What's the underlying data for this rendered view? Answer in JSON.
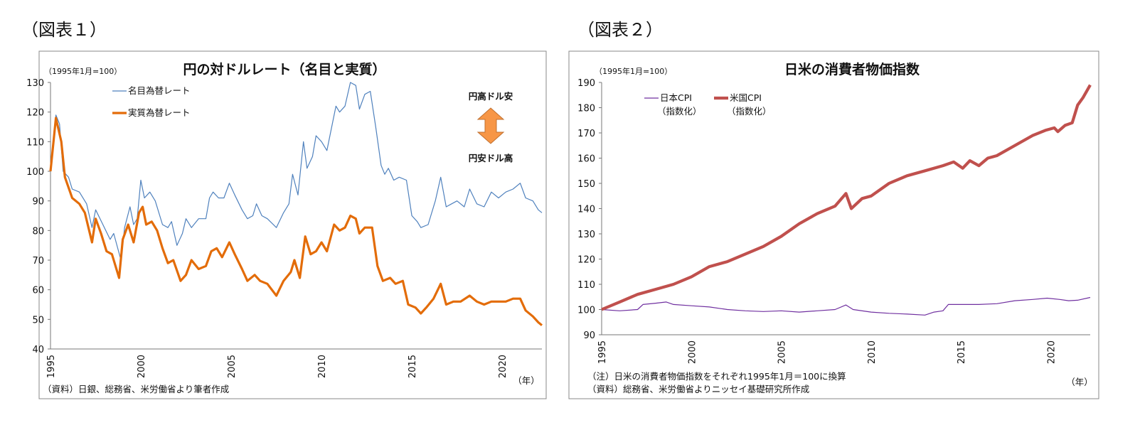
{
  "chart_data": [
    {
      "type": "line",
      "figure_label": "（図表１）",
      "title": "円の対ドルレート（名目と実質）",
      "unit_label": "（1995年1月=100）",
      "xlabel": "（年）",
      "xlim": [
        1995,
        2022.2
      ],
      "ylim": [
        40,
        130
      ],
      "yticks": [
        40,
        50,
        60,
        70,
        80,
        90,
        100,
        110,
        120,
        130
      ],
      "xticks": [
        1995,
        2000,
        2005,
        2010,
        2015,
        2020
      ],
      "grid": false,
      "legend": "top-left",
      "annotation_top": "円高ドル安",
      "annotation_bottom": "円安ドル高",
      "arrow_color": "#F79646",
      "source": "（資料）日銀、総務省、米労働省より筆者作成",
      "series": [
        {
          "name": "名目為替レート",
          "color": "#4F81BD",
          "x": [
            1995.0,
            1995.3,
            1995.5,
            1995.7,
            1996.0,
            1996.2,
            1996.6,
            1997.0,
            1997.3,
            1997.5,
            1997.9,
            1998.3,
            1998.5,
            1998.9,
            1999.1,
            1999.4,
            1999.6,
            1999.8,
            2000.0,
            2000.2,
            2000.5,
            2000.8,
            2001.2,
            2001.5,
            2001.7,
            2002.0,
            2002.3,
            2002.5,
            2002.8,
            2003.2,
            2003.6,
            2003.8,
            2004.0,
            2004.3,
            2004.6,
            2004.9,
            2005.2,
            2005.6,
            2005.9,
            2006.2,
            2006.4,
            2006.7,
            2007.0,
            2007.5,
            2007.9,
            2008.2,
            2008.4,
            2008.7,
            2009.0,
            2009.2,
            2009.5,
            2009.7,
            2010.0,
            2010.3,
            2010.6,
            2010.8,
            2011.0,
            2011.3,
            2011.6,
            2011.9,
            2012.1,
            2012.4,
            2012.7,
            2013.0,
            2013.3,
            2013.5,
            2013.7,
            2014.0,
            2014.3,
            2014.7,
            2015.0,
            2015.3,
            2015.5,
            2015.9,
            2016.3,
            2016.6,
            2016.9,
            2017.2,
            2017.5,
            2017.9,
            2018.2,
            2018.6,
            2019.0,
            2019.4,
            2019.8,
            2020.2,
            2020.6,
            2021.0,
            2021.3,
            2021.7,
            2022.0,
            2022.2
          ],
          "y": [
            100,
            119,
            116,
            100,
            98,
            94,
            93,
            89,
            81,
            87,
            82,
            77,
            79,
            70,
            81,
            88,
            82,
            84,
            97,
            91,
            93,
            90,
            82,
            81,
            83,
            75,
            79,
            84,
            81,
            84,
            84,
            91,
            93,
            91,
            91,
            96,
            92,
            87,
            84,
            85,
            89,
            85,
            84,
            81,
            86,
            89,
            99,
            92,
            110,
            101,
            105,
            112,
            110,
            107,
            116,
            122,
            120,
            122,
            130,
            129,
            121,
            126,
            127,
            115,
            102,
            99,
            101,
            97,
            98,
            97,
            85,
            83,
            81,
            82,
            90,
            98,
            88,
            89,
            90,
            88,
            94,
            89,
            88,
            93,
            91,
            93,
            94,
            96,
            91,
            90,
            87,
            86
          ]
        },
        {
          "name": "実質為替レート",
          "color": "#E36C09",
          "x": [
            1995.0,
            1995.3,
            1995.6,
            1995.8,
            1996.2,
            1996.6,
            1996.9,
            1997.3,
            1997.5,
            1997.8,
            1998.1,
            1998.4,
            1998.8,
            1999.0,
            1999.3,
            1999.6,
            1999.9,
            2000.1,
            2000.3,
            2000.6,
            2000.9,
            2001.2,
            2001.5,
            2001.8,
            2002.2,
            2002.5,
            2002.8,
            2003.2,
            2003.6,
            2003.9,
            2004.2,
            2004.5,
            2004.9,
            2005.2,
            2005.6,
            2005.9,
            2006.3,
            2006.6,
            2007.0,
            2007.5,
            2007.9,
            2008.3,
            2008.5,
            2008.8,
            2009.1,
            2009.4,
            2009.7,
            2010.0,
            2010.3,
            2010.7,
            2011.0,
            2011.3,
            2011.6,
            2011.9,
            2012.1,
            2012.4,
            2012.8,
            2013.1,
            2013.4,
            2013.8,
            2014.1,
            2014.5,
            2014.8,
            2015.2,
            2015.5,
            2015.8,
            2016.2,
            2016.6,
            2016.9,
            2017.3,
            2017.7,
            2018.2,
            2018.6,
            2019.0,
            2019.4,
            2019.8,
            2020.2,
            2020.6,
            2021.0,
            2021.3,
            2021.7,
            2022.0,
            2022.2
          ],
          "y": [
            100,
            118,
            110,
            98,
            91,
            89,
            86,
            76,
            84,
            79,
            73,
            72,
            64,
            77,
            82,
            76,
            86,
            88,
            82,
            83,
            80,
            74,
            69,
            70,
            63,
            65,
            70,
            67,
            68,
            73,
            74,
            71,
            76,
            72,
            67,
            63,
            65,
            63,
            62,
            58,
            63,
            66,
            70,
            64,
            78,
            72,
            73,
            76,
            73,
            82,
            80,
            81,
            85,
            84,
            79,
            81,
            81,
            68,
            63,
            64,
            62,
            63,
            55,
            54,
            52,
            54,
            57,
            62,
            55,
            56,
            56,
            58,
            56,
            55,
            56,
            56,
            56,
            57,
            57,
            53,
            51,
            49,
            48
          ]
        }
      ]
    },
    {
      "type": "line",
      "figure_label": "（図表２）",
      "title": "日米の消費者物価指数",
      "unit_label": "（1995年1月=100）",
      "xlabel": "（年）",
      "xlim": [
        1995,
        2022.2
      ],
      "ylim": [
        90,
        190
      ],
      "yticks": [
        90,
        100,
        110,
        120,
        130,
        140,
        150,
        160,
        170,
        180,
        190
      ],
      "xticks": [
        1995,
        2000,
        2005,
        2010,
        2015,
        2020
      ],
      "grid": false,
      "legend": "top-left",
      "note": "（注）日米の消費者物価指数をそれぞれ1995年1月＝100に換算",
      "source": "（資料）総務省、米労働省よりニッセイ基礎研究所作成",
      "series": [
        {
          "name": "日本CPI",
          "name_line2": "（指数化）",
          "color": "#7030A0",
          "x": [
            1995,
            1996,
            1997.0,
            1997.3,
            1998,
            1998.6,
            1999,
            2000,
            2001,
            2002,
            2003,
            2004,
            2005,
            2006,
            2007,
            2008,
            2008.6,
            2009,
            2010,
            2011,
            2012,
            2013,
            2013.5,
            2014.0,
            2014.3,
            2015,
            2016,
            2017,
            2018,
            2019,
            2019.8,
            2020.5,
            2021,
            2021.5,
            2022.2
          ],
          "y": [
            100,
            99.5,
            100,
            102,
            102.5,
            103,
            102,
            101.5,
            101,
            100,
            99.5,
            99.2,
            99.5,
            99,
            99.5,
            100,
            101.8,
            100,
            99,
            98.5,
            98.2,
            97.8,
            99,
            99.5,
            102,
            102,
            102,
            102.3,
            103.5,
            104,
            104.5,
            104,
            103.5,
            103.7,
            104.8
          ]
        },
        {
          "name": "米国CPI",
          "name_line2": "（指数化）",
          "color": "#C0504D",
          "x": [
            1995,
            1996,
            1997,
            1998,
            1999,
            2000,
            2001,
            2002,
            2003,
            2004,
            2005,
            2006,
            2007,
            2008.0,
            2008.6,
            2008.9,
            2009.5,
            2010,
            2011,
            2012,
            2013,
            2014,
            2014.6,
            2015.1,
            2015.5,
            2016,
            2016.5,
            2017,
            2018,
            2019,
            2019.7,
            2020.2,
            2020.4,
            2020.8,
            2021.2,
            2021.5,
            2021.8,
            2022.2
          ],
          "y": [
            100,
            103,
            106,
            108,
            110,
            113,
            117,
            119,
            122,
            125,
            129,
            134,
            138,
            141,
            146,
            140,
            144,
            145,
            150,
            153,
            155,
            157,
            158.5,
            156,
            159,
            157,
            160,
            161,
            165,
            169,
            171,
            172,
            170.5,
            173,
            174,
            181,
            184,
            189
          ]
        }
      ]
    }
  ]
}
